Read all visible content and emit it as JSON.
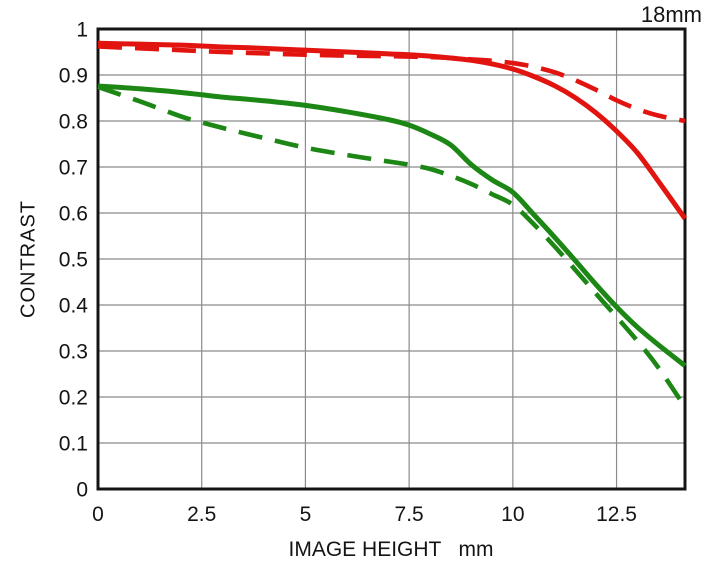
{
  "page": {
    "background_color": "#ffffff",
    "text_color": "#141414"
  },
  "chart_data": {
    "type": "line",
    "title": "18mm",
    "xlabel": "IMAGE HEIGHT   mm",
    "ylabel": "CONTRAST",
    "xlim": [
      0,
      14.15
    ],
    "ylim": [
      0,
      1
    ],
    "grid": true,
    "legend": "none",
    "xticks": [
      0,
      2.5,
      5,
      7.5,
      10,
      12.5
    ],
    "xtick_labels": [
      "0",
      "2.5",
      "5",
      "7.5",
      "10",
      "12.5"
    ],
    "yticks": [
      0,
      0.1,
      0.2,
      0.3,
      0.4,
      0.5,
      0.6,
      0.7,
      0.8,
      0.9,
      1
    ],
    "ytick_labels": [
      "0",
      "0.1",
      "0.2",
      "0.3",
      "0.4",
      "0.5",
      "0.6",
      "0.7",
      "0.8",
      "0.9",
      "1"
    ],
    "x": [
      0,
      1,
      2,
      2.5,
      3,
      4,
      5,
      6,
      7,
      7.5,
      8,
      8.5,
      9,
      9.5,
      10,
      10.5,
      11,
      11.5,
      12,
      12.5,
      13,
      13.5,
      14.15
    ],
    "series": [
      {
        "name": "red-dashed",
        "color": "#e11410",
        "line_style": "dashed",
        "values": [
          0.962,
          0.958,
          0.954,
          0.952,
          0.95,
          0.947,
          0.944,
          0.942,
          0.941,
          0.94,
          0.939,
          0.937,
          0.934,
          0.931,
          0.926,
          0.918,
          0.906,
          0.889,
          0.868,
          0.845,
          0.826,
          0.812,
          0.8
        ]
      },
      {
        "name": "green-dashed",
        "color": "#1c8714",
        "line_style": "dashed",
        "values": [
          0.874,
          0.843,
          0.81,
          0.797,
          0.785,
          0.763,
          0.742,
          0.726,
          0.712,
          0.705,
          0.696,
          0.681,
          0.663,
          0.641,
          0.618,
          0.576,
          0.528,
          0.477,
          0.425,
          0.374,
          0.322,
          0.265,
          0.178
        ]
      },
      {
        "name": "red-solid",
        "color": "#e11410",
        "line_style": "solid",
        "values": [
          0.969,
          0.967,
          0.965,
          0.963,
          0.961,
          0.958,
          0.954,
          0.95,
          0.946,
          0.944,
          0.941,
          0.937,
          0.932,
          0.924,
          0.913,
          0.897,
          0.877,
          0.851,
          0.818,
          0.778,
          0.731,
          0.67,
          0.588
        ]
      },
      {
        "name": "green-solid",
        "color": "#1c8714",
        "line_style": "solid",
        "values": [
          0.876,
          0.87,
          0.862,
          0.857,
          0.852,
          0.844,
          0.834,
          0.82,
          0.803,
          0.791,
          0.772,
          0.748,
          0.705,
          0.672,
          0.645,
          0.597,
          0.548,
          0.497,
          0.445,
          0.396,
          0.352,
          0.314,
          0.268
        ]
      }
    ],
    "style": {
      "grid_color": "#8b8b8b",
      "axis_border_color": "#141414",
      "solid_width": 5,
      "dashed_width": 4.6,
      "dash_pattern": [
        24,
        13
      ]
    }
  }
}
